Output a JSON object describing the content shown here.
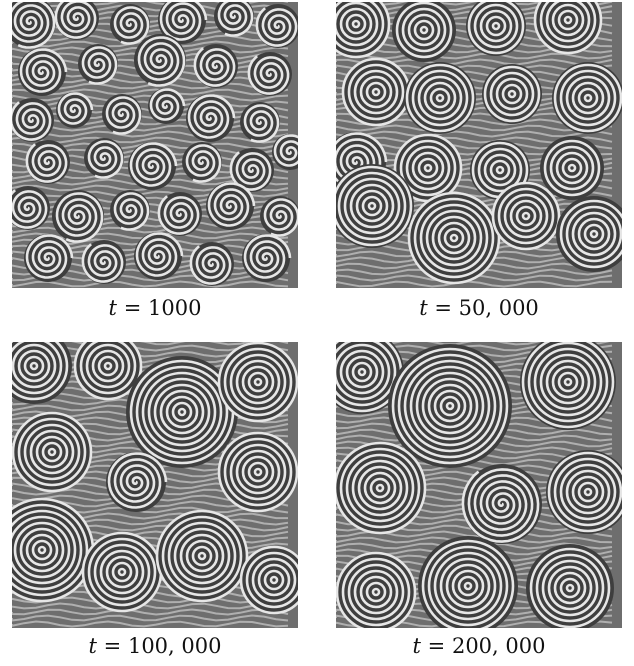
{
  "figure": {
    "panels": [
      {
        "time_value": "1000",
        "pattern": "reaction-diffusion-spirals"
      },
      {
        "time_value": "50, 000",
        "pattern": "reaction-diffusion-spirals"
      },
      {
        "time_value": "100, 000",
        "pattern": "reaction-diffusion-spirals"
      },
      {
        "time_value": "200, 000",
        "pattern": "reaction-diffusion-spirals"
      }
    ],
    "variable": "t",
    "equals": "=",
    "colors": {
      "background": "#6e6e6e",
      "stripe_light": "#e6e6e6",
      "stripe_dark": "#3e3e3e"
    }
  }
}
